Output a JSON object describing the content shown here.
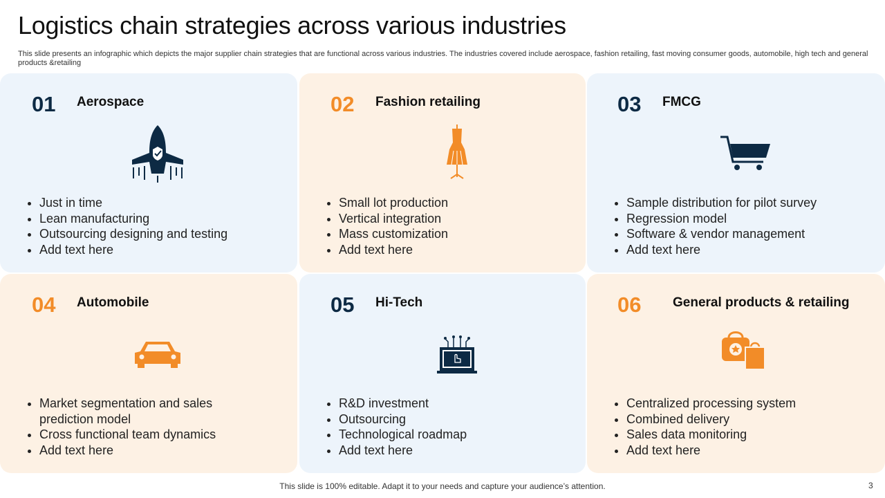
{
  "header": {
    "title": "Logistics chain strategies across various industries",
    "subtitle": "This slide presents an infographic which depicts the major supplier chain strategies that are functional across various industries. The industries covered include aerospace, fashion retailing, fast moving consumer goods, automobile, high tech and general products &retailing"
  },
  "cards": [
    {
      "number": "01",
      "title": "Aerospace",
      "bullets": [
        "Just in time",
        "Lean manufacturing",
        "Outsourcing designing and testing",
        "Add text here"
      ]
    },
    {
      "number": "02",
      "title": "Fashion retailing",
      "bullets": [
        "Small lot production",
        "Vertical integration",
        "Mass customization",
        "Add text here"
      ]
    },
    {
      "number": "03",
      "title": "FMCG",
      "bullets": [
        "Sample distribution for pilot survey",
        "Regression model",
        "Software & vendor management",
        "Add text here"
      ]
    },
    {
      "number": "04",
      "title": "Automobile",
      "bullets": [
        "Market segmentation and sales prediction model",
        "Cross functional team dynamics",
        "Add text here"
      ]
    },
    {
      "number": "05",
      "title": "Hi-Tech",
      "bullets": [
        "R&D investment",
        "Outsourcing",
        "Technological roadmap",
        "Add text here"
      ]
    },
    {
      "number": "06",
      "title": "General products & retailing",
      "bullets": [
        "Centralized processing system",
        "Combined delivery",
        "Sales data monitoring",
        "Add text here"
      ]
    }
  ],
  "footer": {
    "text": "This slide is 100% editable. Adapt it to your needs and capture your audience’s attention.",
    "page_number": "3"
  }
}
